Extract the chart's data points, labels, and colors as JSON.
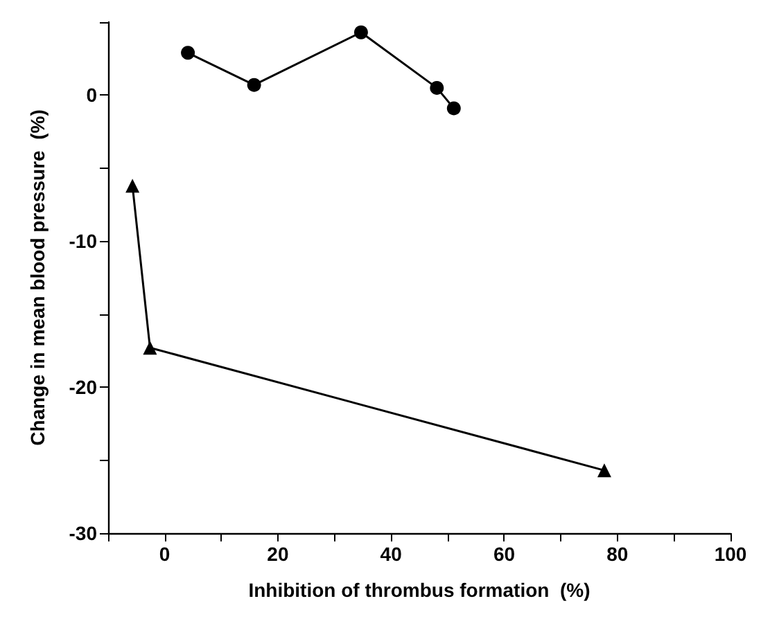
{
  "chart_data": {
    "type": "line",
    "xlabel": "Inhibition of thrombus formation  (%)",
    "ylabel": "Change in mean blood pressure  (%)",
    "xlim": [
      -10,
      100
    ],
    "ylim": [
      -30,
      5
    ],
    "xticks": [
      {
        "value": -10,
        "label": null
      },
      0,
      {
        "value": 10,
        "label": null
      },
      20,
      {
        "value": 30,
        "label": null
      },
      40,
      {
        "value": 50,
        "label": null
      },
      60,
      {
        "value": 70,
        "label": null
      },
      80,
      {
        "value": 90,
        "label": null
      },
      100
    ],
    "yticks": [
      -30,
      {
        "value": -25,
        "label": null
      },
      -20,
      {
        "value": -15,
        "label": null
      },
      -10,
      {
        "value": -5,
        "label": null
      },
      0,
      {
        "value": 5,
        "label": null
      }
    ],
    "grid": false,
    "line_style": "solid",
    "series": [
      {
        "color": "#000000",
        "marker": "circle",
        "x": [
          4.1,
          15.8,
          34.7,
          48.1,
          51.1
        ],
        "values": [
          2.9,
          0.7,
          4.3,
          0.5,
          -0.9
        ]
      },
      {
        "color": "#000000",
        "marker": "triangle",
        "x": [
          -5.7,
          -2.6,
          77.7
        ],
        "values": [
          -6.2,
          -17.3,
          -25.7
        ]
      }
    ]
  }
}
